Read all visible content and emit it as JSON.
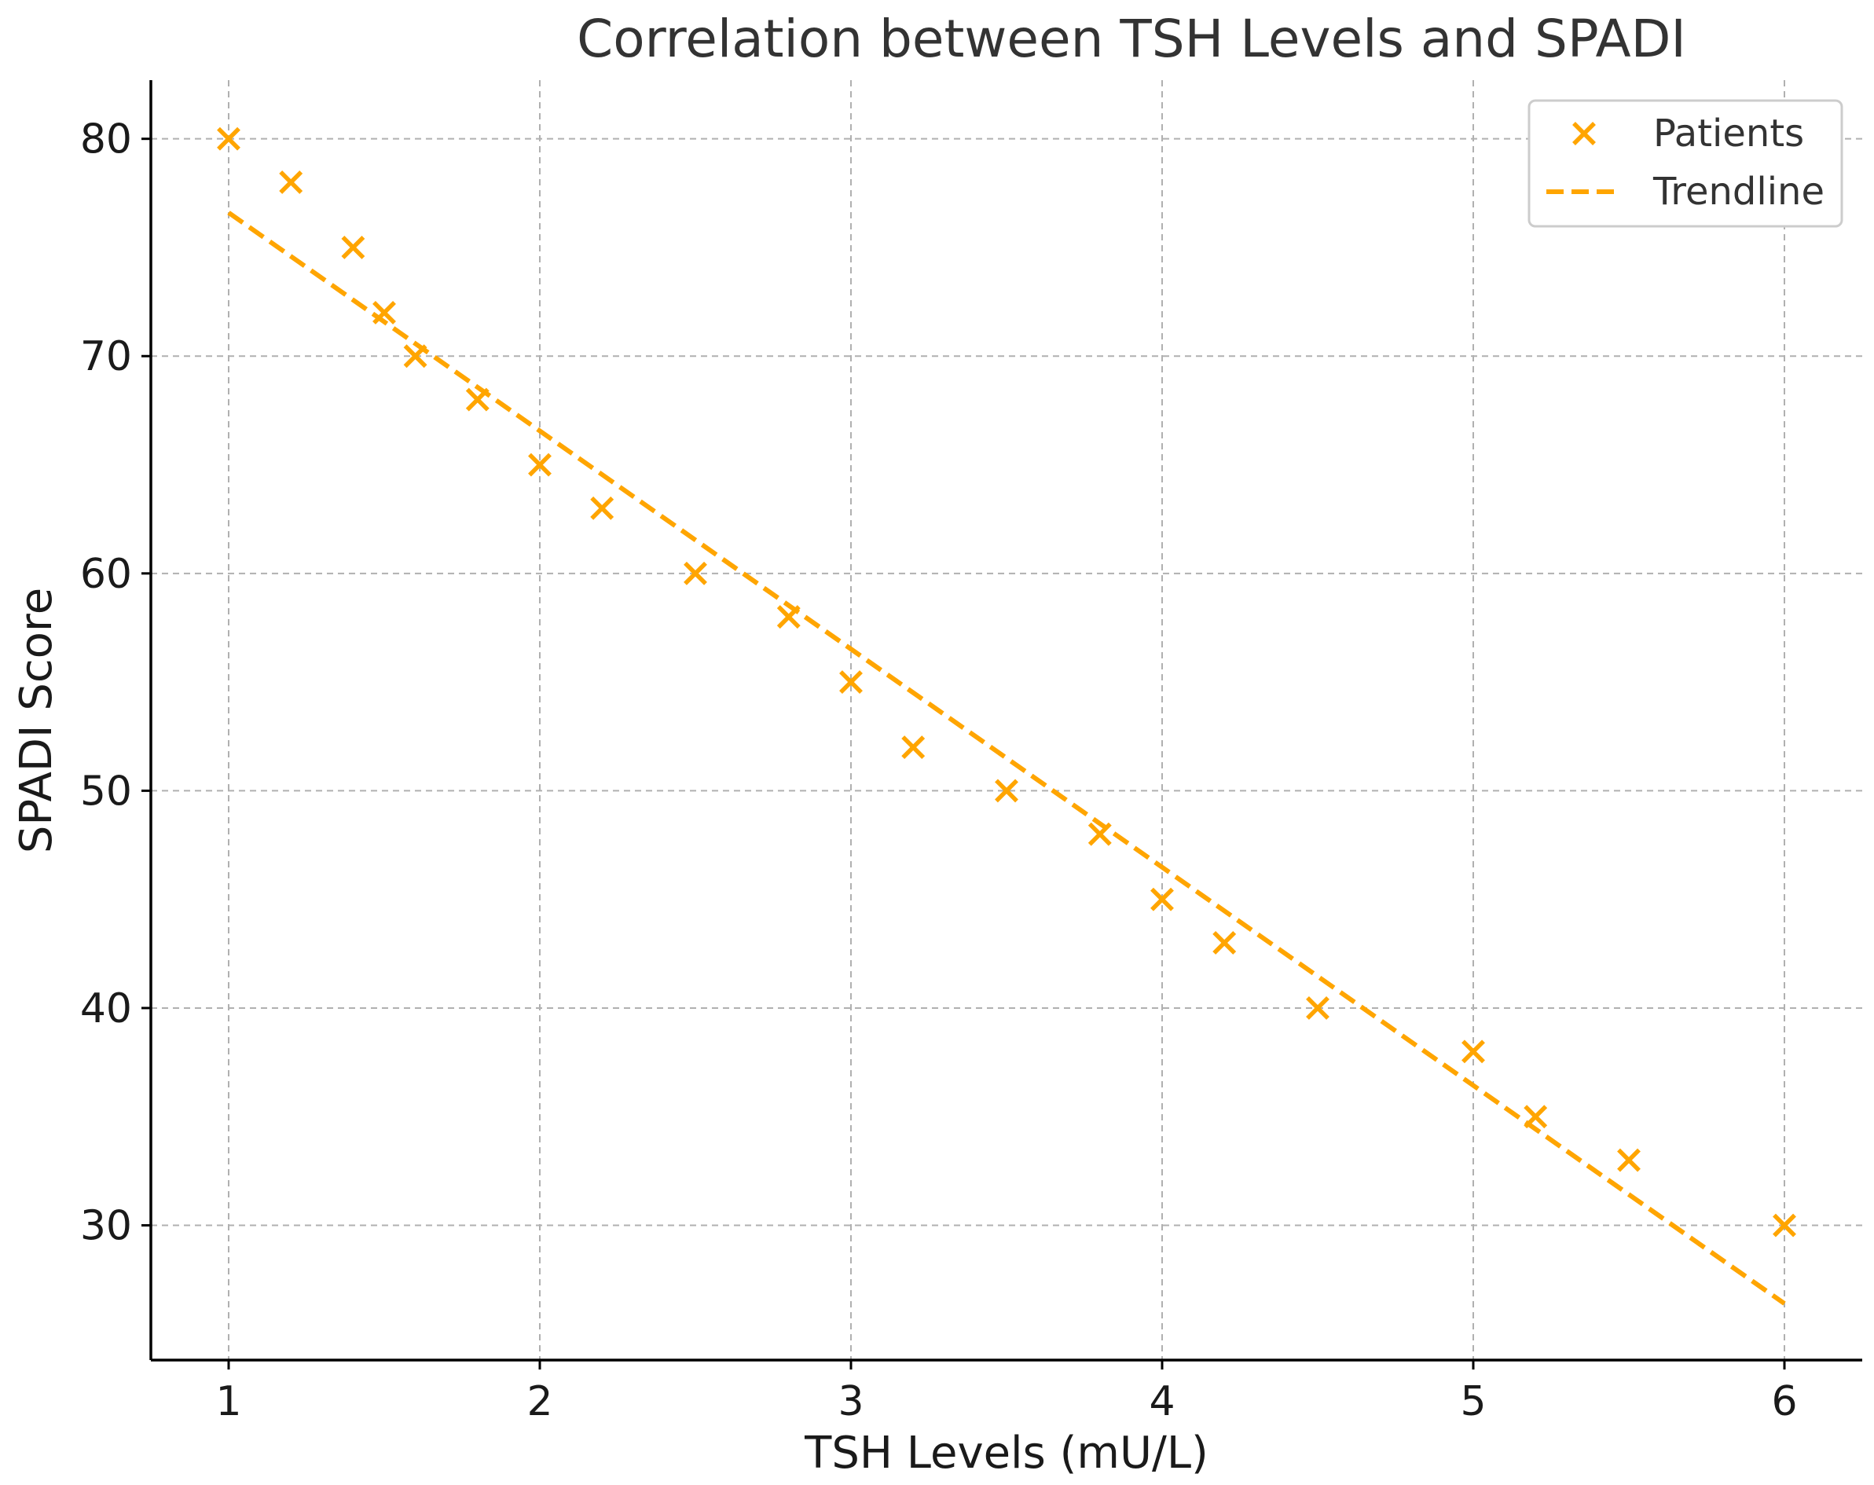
{
  "chart_data": {
    "type": "scatter",
    "title": "Correlation between TSH Levels and SPADI",
    "xlabel": "TSH Levels (mU/L)",
    "ylabel": "SPADI Score",
    "xlim": [
      0.75,
      6.25
    ],
    "ylim": [
      23.8,
      82.7
    ],
    "x_ticks": [
      1,
      2,
      3,
      4,
      5,
      6
    ],
    "y_ticks": [
      30,
      40,
      50,
      60,
      70,
      80
    ],
    "grid": true,
    "legend_position": "top-right",
    "color": "#ffa500",
    "series": [
      {
        "name": "Patients",
        "kind": "scatter",
        "marker": "x",
        "x": [
          1.0,
          1.2,
          1.4,
          1.5,
          1.6,
          1.8,
          2.0,
          2.2,
          2.5,
          2.8,
          3.0,
          3.2,
          3.5,
          3.8,
          4.0,
          4.2,
          4.5,
          5.0,
          5.2,
          5.5,
          6.0
        ],
        "y": [
          80,
          78,
          75,
          72,
          70,
          68,
          65,
          63,
          60,
          58,
          55,
          52,
          50,
          48,
          45,
          43,
          40,
          38,
          35,
          33,
          30
        ]
      },
      {
        "name": "Trendline",
        "kind": "line",
        "style": "dashed",
        "x": [
          1.0,
          6.0
        ],
        "y": [
          76.6,
          26.4
        ]
      }
    ]
  }
}
